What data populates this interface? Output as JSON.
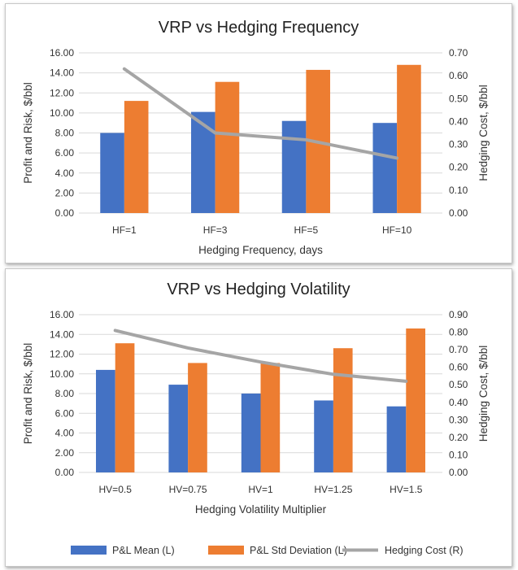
{
  "chart_data": [
    {
      "type": "bar",
      "title": "VRP vs Hedging Frequency",
      "xlabel": "Hedging Frequency, days",
      "ylabel": "Profit and Risk, $/bbl",
      "y2label": "Hedging Cost, $/bbl",
      "ylim": [
        0,
        16
      ],
      "y2lim": [
        0,
        0.7
      ],
      "yticks": [
        "0.00",
        "2.00",
        "4.00",
        "6.00",
        "8.00",
        "10.00",
        "12.00",
        "14.00",
        "16.00"
      ],
      "y2ticks": [
        "0.00",
        "0.10",
        "0.20",
        "0.30",
        "0.40",
        "0.50",
        "0.60",
        "0.70"
      ],
      "categories": [
        "HF=1",
        "HF=3",
        "HF=5",
        "HF=10"
      ],
      "series": [
        {
          "name": "P&L Mean (L)",
          "kind": "bar",
          "axis": "left",
          "color": "#4472c4",
          "values": [
            8.0,
            10.1,
            9.2,
            9.0
          ]
        },
        {
          "name": "P&L Std Deviation (L)",
          "kind": "bar",
          "axis": "left",
          "color": "#ed7d31",
          "values": [
            11.2,
            13.1,
            14.3,
            14.8
          ]
        },
        {
          "name": "Hedging Cost (R)",
          "kind": "line",
          "axis": "right",
          "color": "#a5a5a5",
          "values": [
            0.63,
            0.35,
            0.32,
            0.24
          ]
        }
      ]
    },
    {
      "type": "bar",
      "title": "VRP vs Hedging Volatility",
      "xlabel": "Hedging Volatility Multiplier",
      "ylabel": "Profit and Risk, $/bbl",
      "y2label": "Hedging Cost, $/bbl",
      "ylim": [
        0,
        16
      ],
      "y2lim": [
        0,
        0.9
      ],
      "yticks": [
        "0.00",
        "2.00",
        "4.00",
        "6.00",
        "8.00",
        "10.00",
        "12.00",
        "14.00",
        "16.00"
      ],
      "y2ticks": [
        "0.00",
        "0.10",
        "0.20",
        "0.30",
        "0.40",
        "0.50",
        "0.60",
        "0.70",
        "0.80",
        "0.90"
      ],
      "categories": [
        "HV=0.5",
        "HV=0.75",
        "HV=1",
        "HV=1.25",
        "HV=1.5"
      ],
      "series": [
        {
          "name": "P&L Mean (L)",
          "kind": "bar",
          "axis": "left",
          "color": "#4472c4",
          "values": [
            10.4,
            8.9,
            8.0,
            7.3,
            6.7
          ]
        },
        {
          "name": "P&L Std Deviation (L)",
          "kind": "bar",
          "axis": "left",
          "color": "#ed7d31",
          "values": [
            13.1,
            11.1,
            11.1,
            12.6,
            14.6
          ]
        },
        {
          "name": "Hedging Cost (R)",
          "kind": "line",
          "axis": "right",
          "color": "#a5a5a5",
          "values": [
            0.81,
            0.71,
            0.63,
            0.56,
            0.52
          ]
        }
      ]
    }
  ],
  "legend": {
    "items": [
      {
        "label": "P&L Mean (L)",
        "color": "#4472c4",
        "kind": "bar"
      },
      {
        "label": "P&L Std Deviation (L)",
        "color": "#ed7d31",
        "kind": "bar"
      },
      {
        "label": "Hedging Cost (R)",
        "color": "#a5a5a5",
        "kind": "line"
      }
    ]
  }
}
